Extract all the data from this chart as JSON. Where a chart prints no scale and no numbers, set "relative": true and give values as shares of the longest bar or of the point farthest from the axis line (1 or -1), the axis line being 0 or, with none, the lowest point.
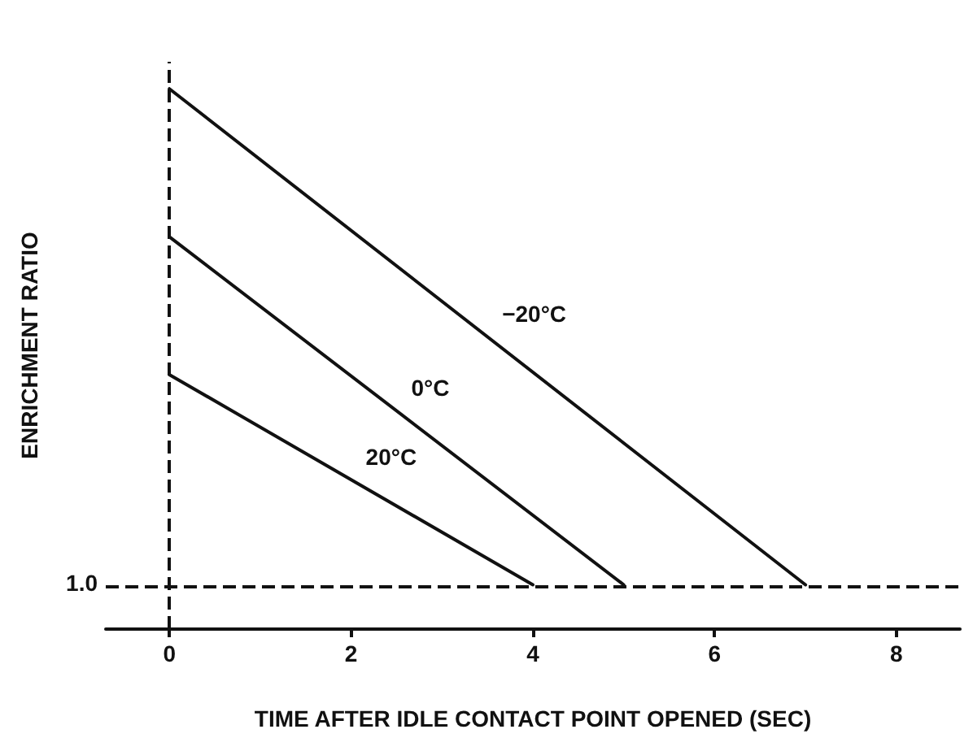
{
  "chart_data": {
    "type": "line",
    "relative": true,
    "xlabel": "TIME AFTER IDLE CONTACT POINT OPENED (SEC)",
    "ylabel": "ENRICHMENT RATIO",
    "annotations": [
      "1.0"
    ],
    "xlim": [
      -0.7,
      8.7
    ],
    "xticks": [
      0,
      2,
      4,
      6,
      8
    ],
    "marker": "none",
    "line_style": "solid",
    "grid": false,
    "legend": false,
    "series": [
      {
        "name": "−20°C",
        "color": "#111111",
        "x": [
          0,
          7
        ],
        "values": [
          1,
          0.082
        ]
      },
      {
        "name": "0°C",
        "color": "#111111",
        "x": [
          0,
          5
        ],
        "values": [
          0.726,
          0.082
        ]
      },
      {
        "name": "20°C",
        "color": "#111111",
        "x": [
          0,
          4
        ],
        "values": [
          0.471,
          0.082
        ]
      }
    ],
    "ref_lines": [
      {
        "axis": "y",
        "value": 0.082,
        "label": null,
        "line_style": "dashed",
        "color": "#111111"
      },
      {
        "axis": "x",
        "value": 0,
        "label": null,
        "line_style": "dashed",
        "color": "#111111"
      }
    ]
  }
}
